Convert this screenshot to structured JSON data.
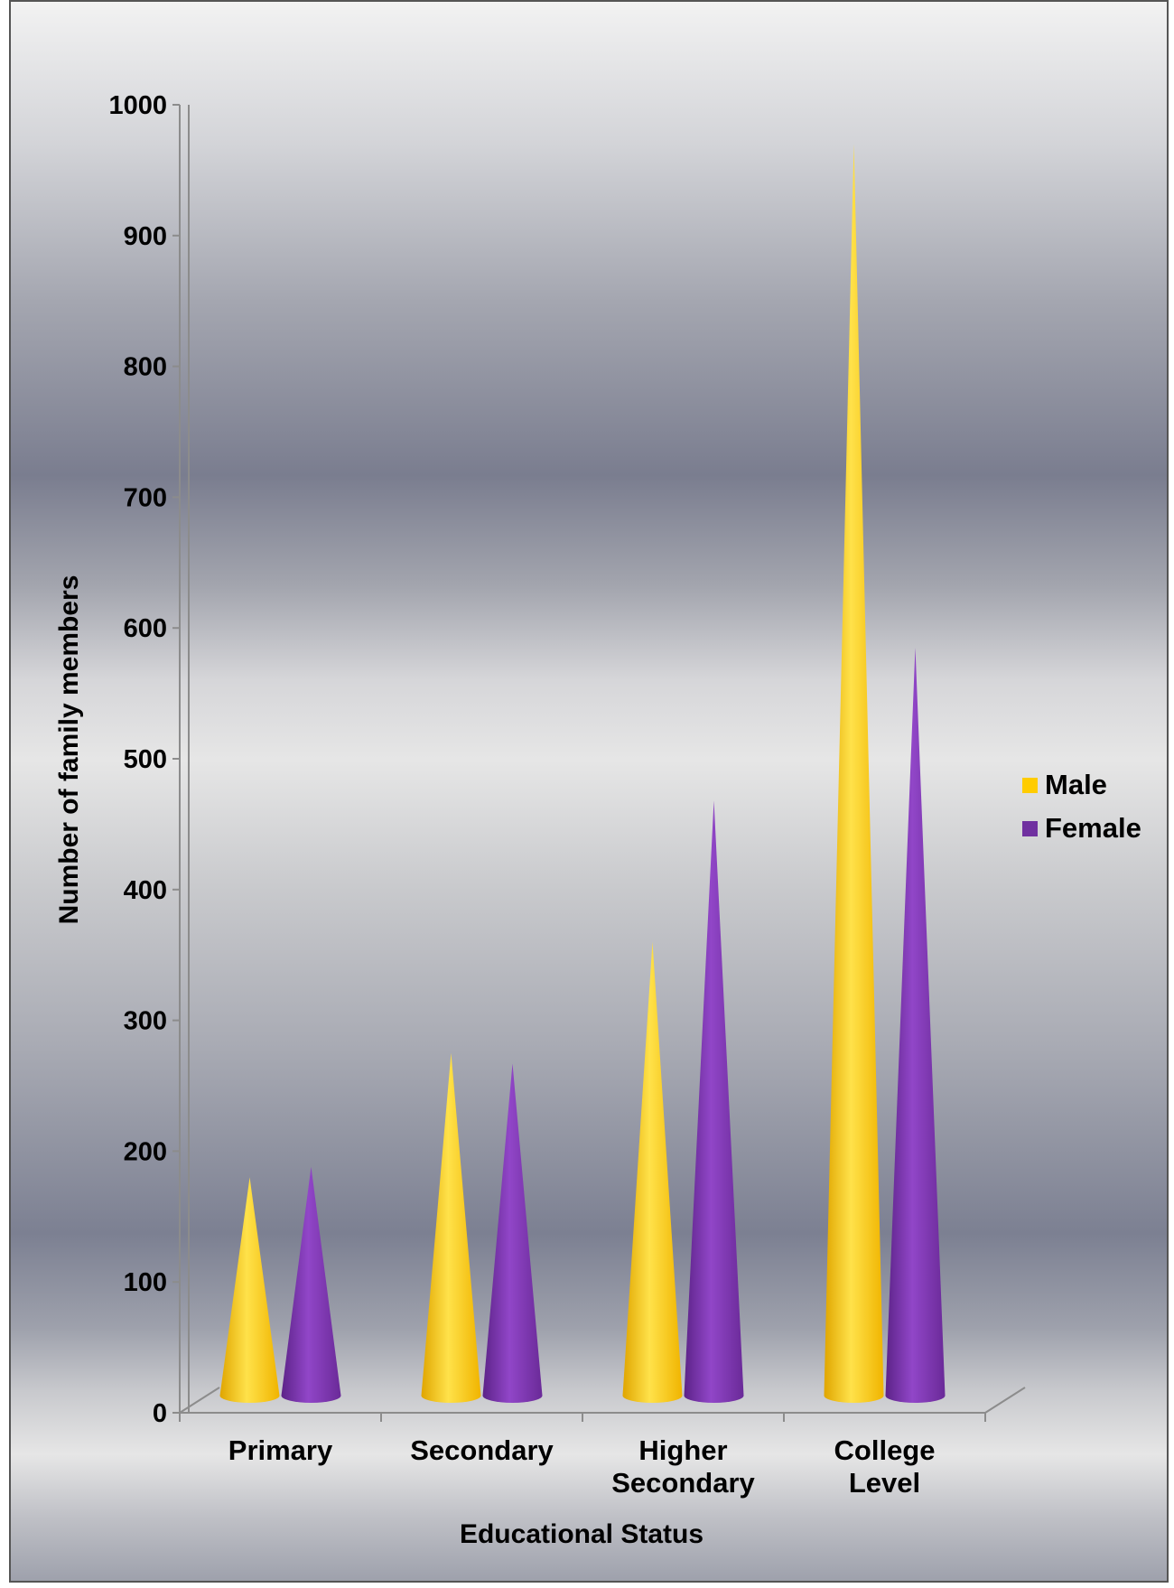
{
  "chart_data": {
    "type": "bar",
    "title": "",
    "xlabel": "Educational Status",
    "ylabel": "Number of family members",
    "categories": [
      [
        "Primary"
      ],
      [
        "Secondary"
      ],
      [
        "Higher",
        "Secondary"
      ],
      [
        "College",
        "Level"
      ]
    ],
    "series": [
      {
        "name": "Male",
        "color": "#FFCC00",
        "values": [
          180,
          275,
          360,
          970
        ]
      },
      {
        "name": "Female",
        "color": "#7030A0",
        "values": [
          188,
          267,
          468,
          585
        ]
      }
    ],
    "ylim": [
      0,
      1000
    ],
    "yticks": [
      "0",
      "100",
      "200",
      "300",
      "400",
      "500",
      "600",
      "700",
      "800",
      "900",
      "1000"
    ],
    "legend_position": "right",
    "grid": false,
    "bar_shape": "cone"
  }
}
